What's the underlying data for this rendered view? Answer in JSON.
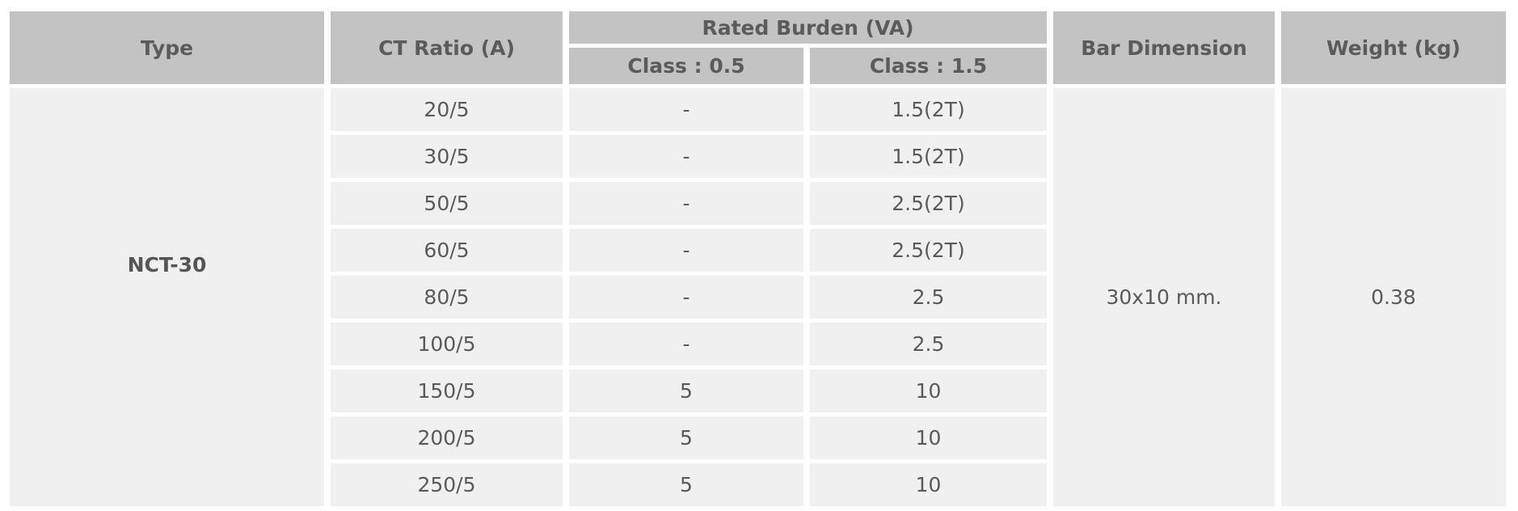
{
  "header": {
    "type": "Type",
    "ct_ratio": "CT Ratio (A)",
    "rated_burden": "Rated Burden (VA)",
    "class_05": "Class : 0.5",
    "class_15": "Class : 1.5",
    "bar_dimension": "Bar Dimension",
    "weight": "Weight (kg)"
  },
  "body": {
    "type": "NCT-30",
    "bar_dimension": "30x10 mm.",
    "weight": "0.38",
    "rows": [
      [
        "20/5",
        "-",
        "1.5(2T)"
      ],
      [
        "30/5",
        "-",
        "1.5(2T)"
      ],
      [
        "50/5",
        "-",
        "2.5(2T)"
      ],
      [
        "60/5",
        "-",
        "2.5(2T)"
      ],
      [
        "80/5",
        "-",
        "2.5"
      ],
      [
        "100/5",
        "-",
        "2.5"
      ],
      [
        "150/5",
        "5",
        "10"
      ],
      [
        "200/5",
        "5",
        "10"
      ],
      [
        "250/5",
        "5",
        "10"
      ]
    ]
  }
}
